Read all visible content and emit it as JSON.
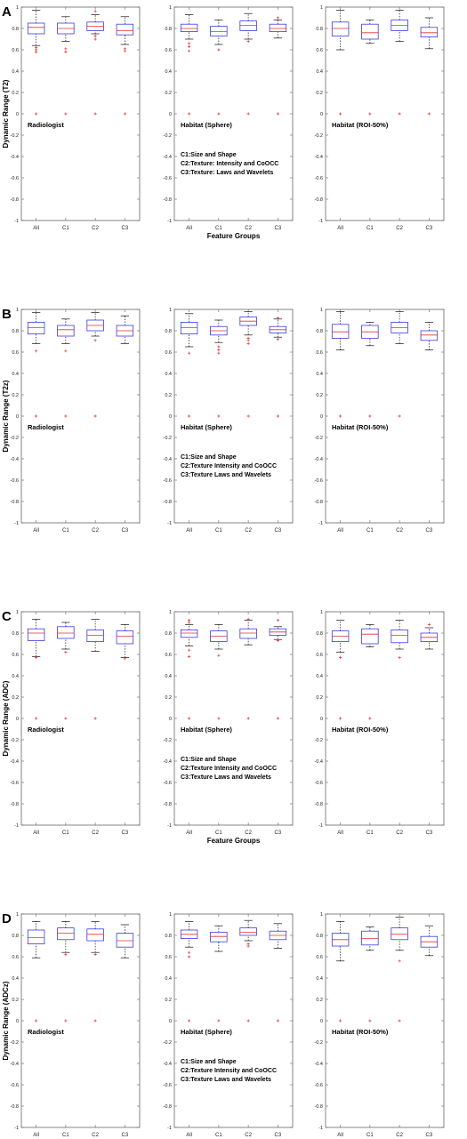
{
  "colors": {
    "box": "#3a3ae6",
    "median": "#e23232",
    "outlier": "#e23232",
    "whisker": "#111111",
    "frame": "#666666"
  },
  "shared_xlabel": "Feature Groups",
  "chart_data": [
    {
      "panel": "A",
      "ylabel": "Dynamic Range (T2)",
      "ylim": [
        -1,
        1
      ],
      "yticks": [
        "1",
        "0.8",
        "0.6",
        "0.4",
        "0.2",
        "0",
        "-0.2",
        "-0.4",
        "-0.6",
        "-0.8",
        "-1"
      ],
      "show_xlabel": true,
      "subplots": [
        {
          "type": "box",
          "title": "Radiologist",
          "categories": [
            "All",
            "C1",
            "C2",
            "C3"
          ],
          "stats": [
            [
              0.64,
              0.75,
              0.81,
              0.85,
              0.97
            ],
            [
              0.68,
              0.75,
              0.8,
              0.85,
              0.91
            ],
            [
              0.75,
              0.78,
              0.82,
              0.86,
              0.93
            ],
            [
              0.65,
              0.74,
              0.78,
              0.84,
              0.91
            ]
          ],
          "outliers": [
            [
              0.6,
              0.58,
              0.62,
              0.0
            ],
            [
              0.61,
              0.58,
              0.0
            ],
            [
              0.73,
              0.7,
              0.96,
              0.0
            ],
            [
              0.61,
              0.59,
              0.0
            ]
          ],
          "notes": []
        },
        {
          "type": "box",
          "title": "Habitat (Sphere)",
          "categories": [
            "All",
            "C1",
            "C2",
            "C3"
          ],
          "stats": [
            [
              0.7,
              0.77,
              0.8,
              0.84,
              0.93
            ],
            [
              0.65,
              0.73,
              0.77,
              0.82,
              0.88
            ],
            [
              0.7,
              0.78,
              0.83,
              0.87,
              0.94
            ],
            [
              0.71,
              0.77,
              0.8,
              0.84,
              0.88
            ]
          ],
          "outliers": [
            [
              0.66,
              0.63,
              0.59,
              0.0
            ],
            [
              0.6,
              0.0
            ],
            [
              0.68,
              0.0
            ],
            [
              0.9,
              0.0
            ]
          ],
          "notes": [
            "C1:Size and Shape",
            "C2:Texture: Intensity and CoOCC",
            "C3:Texture: Laws and Wavelets"
          ]
        },
        {
          "type": "box",
          "title": "Habitat (ROI-50%)",
          "categories": [
            "All",
            "C1",
            "C2",
            "C3"
          ],
          "stats": [
            [
              0.6,
              0.73,
              0.8,
              0.86,
              0.97
            ],
            [
              0.66,
              0.7,
              0.76,
              0.84,
              0.88
            ],
            [
              0.68,
              0.78,
              0.83,
              0.88,
              0.97
            ],
            [
              0.61,
              0.72,
              0.76,
              0.81,
              0.9
            ]
          ],
          "outliers": [
            [
              0.0
            ],
            [
              0.0
            ],
            [
              0.0
            ],
            [
              0.0
            ]
          ],
          "notes": []
        }
      ]
    },
    {
      "panel": "B",
      "ylabel": "Dynamic Range (T2z)",
      "ylim": [
        -1,
        1
      ],
      "yticks": [
        "1",
        "0.8",
        "0.6",
        "0.4",
        "0.2",
        "0",
        "-0.2",
        "-0.4",
        "-0.6",
        "-0.8",
        "-1"
      ],
      "show_xlabel": false,
      "subplots": [
        {
          "type": "box",
          "title": "Radiologist",
          "categories": [
            "All",
            "C1",
            "C2",
            "C3"
          ],
          "stats": [
            [
              0.68,
              0.77,
              0.83,
              0.88,
              0.97
            ],
            [
              0.68,
              0.75,
              0.81,
              0.85,
              0.91
            ],
            [
              0.75,
              0.8,
              0.85,
              0.9,
              0.97
            ],
            [
              0.68,
              0.75,
              0.8,
              0.85,
              0.94
            ]
          ],
          "outliers": [
            [
              0.61,
              0.0
            ],
            [
              0.61,
              0.0
            ],
            [
              0.71,
              0.0
            ],
            []
          ],
          "notes": []
        },
        {
          "type": "box",
          "title": "Habitat (Sphere)",
          "categories": [
            "All",
            "C1",
            "C2",
            "C3"
          ],
          "stats": [
            [
              0.65,
              0.77,
              0.83,
              0.88,
              0.96
            ],
            [
              0.69,
              0.76,
              0.8,
              0.84,
              0.9
            ],
            [
              0.76,
              0.85,
              0.89,
              0.93,
              0.98
            ],
            [
              0.74,
              0.78,
              0.81,
              0.84,
              0.91
            ]
          ],
          "outliers": [
            [
              0.59,
              0.0
            ],
            [
              0.65,
              0.62,
              0.59,
              0.0
            ],
            [
              0.73,
              0.71,
              0.68,
              0.0
            ],
            [
              0.72,
              0.92,
              0.0
            ]
          ],
          "notes": [
            "C1:Size and Shape",
            "C2:Texture Intensity and CoOCC",
            "C3:Texture Laws and Wavelets"
          ]
        },
        {
          "type": "box",
          "title": "Habitat (ROI-50%)",
          "categories": [
            "All",
            "C1",
            "C2",
            "C3"
          ],
          "stats": [
            [
              0.62,
              0.73,
              0.79,
              0.86,
              0.98
            ],
            [
              0.66,
              0.73,
              0.79,
              0.85,
              0.88
            ],
            [
              0.68,
              0.78,
              0.83,
              0.88,
              0.98
            ],
            [
              0.62,
              0.71,
              0.76,
              0.8,
              0.88
            ]
          ],
          "outliers": [
            [
              0.0
            ],
            [
              0.0
            ],
            [
              0.0
            ],
            []
          ],
          "notes": []
        }
      ]
    },
    {
      "panel": "C",
      "ylabel": "Dynamic Range (ADC)",
      "ylim": [
        -1,
        1
      ],
      "yticks": [
        "1",
        "0.8",
        "0.6",
        "0.4",
        "0.2",
        "0",
        "-0.2",
        "-0.4",
        "-0.6",
        "-0.8",
        "-1"
      ],
      "show_xlabel": true,
      "subplots": [
        {
          "type": "box",
          "title": "Radiologist",
          "categories": [
            "All",
            "C1",
            "C2",
            "C3"
          ],
          "stats": [
            [
              0.58,
              0.73,
              0.8,
              0.84,
              0.93
            ],
            [
              0.65,
              0.75,
              0.8,
              0.86,
              0.9
            ],
            [
              0.63,
              0.72,
              0.78,
              0.83,
              0.93
            ],
            [
              0.57,
              0.7,
              0.77,
              0.82,
              0.88
            ]
          ],
          "outliers": [
            [
              0.57,
              0.0
            ],
            [
              0.62,
              0.0
            ],
            [
              0.0
            ],
            [
              0.56
            ]
          ],
          "notes": []
        },
        {
          "type": "box",
          "title": "Habitat (Sphere)",
          "categories": [
            "All",
            "C1",
            "C2",
            "C3"
          ],
          "stats": [
            [
              0.68,
              0.76,
              0.8,
              0.83,
              0.88
            ],
            [
              0.65,
              0.72,
              0.77,
              0.82,
              0.88
            ],
            [
              0.69,
              0.75,
              0.8,
              0.84,
              0.92
            ],
            [
              0.74,
              0.78,
              0.81,
              0.84,
              0.86
            ]
          ],
          "outliers": [
            [
              0.64,
              0.58,
              0.92,
              0.9,
              0.0
            ],
            [
              0.59,
              0.0
            ],
            [
              0.93,
              0.0
            ],
            [
              0.92,
              0.73,
              0.0
            ]
          ],
          "notes": [
            "C1:Size and Shape",
            "C2:Texture Intensity and CoOCC",
            "C3:Texture Laws and Wavelets"
          ]
        },
        {
          "type": "box",
          "title": "Habitat (ROI-50%)",
          "categories": [
            "All",
            "C1",
            "C2",
            "C3"
          ],
          "stats": [
            [
              0.62,
              0.72,
              0.77,
              0.82,
              0.92
            ],
            [
              0.67,
              0.7,
              0.79,
              0.84,
              0.88
            ],
            [
              0.65,
              0.71,
              0.78,
              0.83,
              0.92
            ],
            [
              0.65,
              0.72,
              0.76,
              0.8,
              0.85
            ]
          ],
          "outliers": [
            [
              0.57,
              0.0
            ],
            [
              0.0
            ],
            [
              0.57
            ],
            [
              0.88
            ]
          ],
          "notes": []
        }
      ]
    },
    {
      "panel": "D",
      "ylabel": "Dynamic Range (ADCz)",
      "ylim": [
        -1,
        1
      ],
      "yticks": [
        "1",
        "0.8",
        "0.6",
        "0.4",
        "0.2",
        "0",
        "-0.2",
        "-0.4",
        "-0.6",
        "-0.8",
        "-1"
      ],
      "show_xlabel": true,
      "subplots": [
        {
          "type": "box",
          "title": "Radiologist",
          "categories": [
            "All",
            "C1",
            "C2",
            "C3"
          ],
          "stats": [
            [
              0.59,
              0.72,
              0.78,
              0.85,
              0.93
            ],
            [
              0.64,
              0.76,
              0.82,
              0.87,
              0.93
            ],
            [
              0.64,
              0.75,
              0.81,
              0.86,
              0.93
            ],
            [
              0.59,
              0.69,
              0.75,
              0.82,
              0.9
            ]
          ],
          "outliers": [
            [
              0.0
            ],
            [
              0.62,
              0.0
            ],
            [
              0.62,
              0.0
            ],
            []
          ],
          "notes": []
        },
        {
          "type": "box",
          "title": "Habitat (Sphere)",
          "categories": [
            "All",
            "C1",
            "C2",
            "C3"
          ],
          "stats": [
            [
              0.69,
              0.77,
              0.81,
              0.85,
              0.93
            ],
            [
              0.65,
              0.74,
              0.79,
              0.83,
              0.89
            ],
            [
              0.75,
              0.8,
              0.83,
              0.87,
              0.94
            ],
            [
              0.68,
              0.76,
              0.8,
              0.84,
              0.91
            ]
          ],
          "outliers": [
            [
              0.64,
              0.6,
              0.0
            ],
            [
              0.0
            ],
            [
              0.72,
              0.7,
              0.0
            ],
            [
              0.0
            ]
          ],
          "notes": [
            "C1:Size and Shape",
            "C2:Texture Intensity and CoOCC",
            "C3:Texture Laws and Wavelets"
          ]
        },
        {
          "type": "box",
          "title": "Habitat (ROI-50%)",
          "categories": [
            "All",
            "C1",
            "C2",
            "C3"
          ],
          "stats": [
            [
              0.56,
              0.7,
              0.76,
              0.82,
              0.93
            ],
            [
              0.66,
              0.71,
              0.77,
              0.84,
              0.88
            ],
            [
              0.66,
              0.76,
              0.81,
              0.87,
              0.97
            ],
            [
              0.61,
              0.69,
              0.74,
              0.79,
              0.89
            ]
          ],
          "outliers": [
            [
              0.0
            ],
            [
              0.0
            ],
            [
              0.56,
              0.0
            ],
            []
          ],
          "notes": []
        }
      ]
    }
  ]
}
